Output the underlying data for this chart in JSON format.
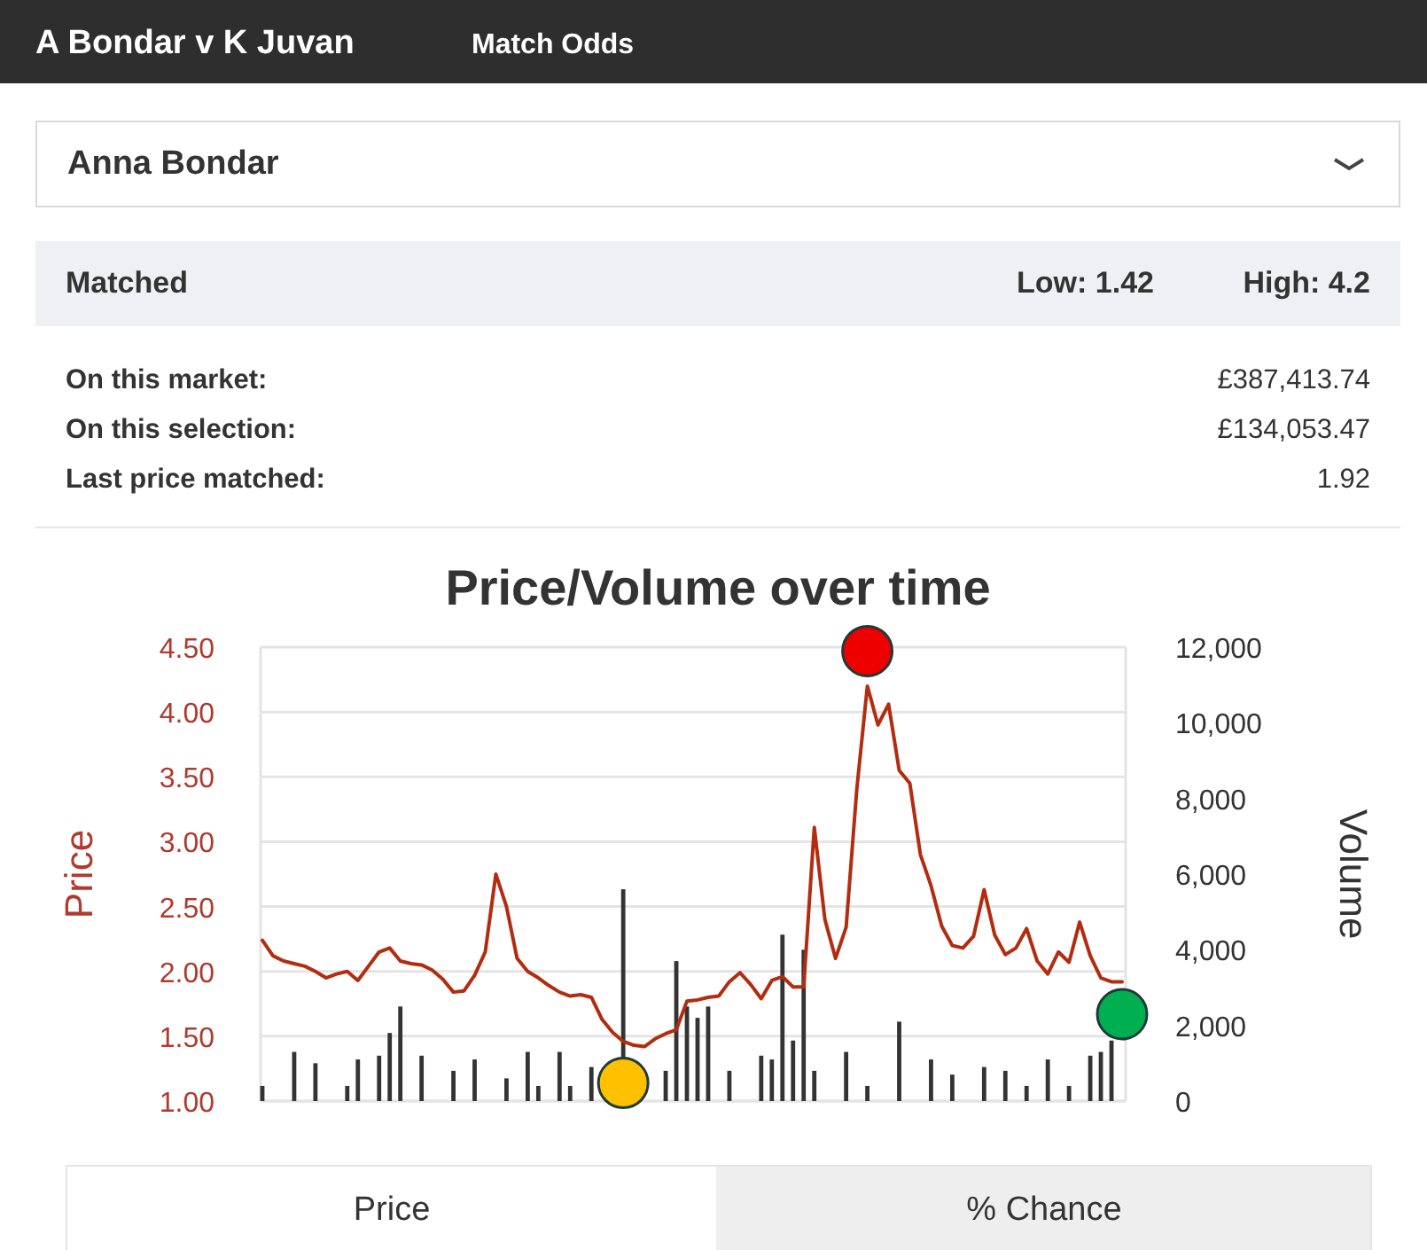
{
  "chart_data": {
    "type": "line",
    "title": "Price/Volume over time",
    "ylabel": "Price",
    "y2label": "Volume",
    "annotations": [
      "A Bondar v K Juvan",
      "Match Odds",
      "Anna Bondar",
      "Matched",
      "Low: 1.42",
      "High: 4.2",
      "On this market:",
      "£387,413.74",
      "On this selection:",
      "£134,053.47",
      "Last price matched:",
      "1.92",
      "Price",
      "% Chance"
    ],
    "categories": [
      null,
      null,
      null,
      null,
      null,
      null,
      null,
      null,
      null,
      null,
      null,
      null,
      null,
      null,
      null,
      null,
      null,
      null,
      null,
      null,
      null,
      null,
      null,
      null,
      null,
      null,
      null,
      null,
      null,
      null,
      null,
      null,
      null,
      null,
      null,
      null,
      null,
      null,
      null,
      null,
      null,
      null,
      null,
      null,
      null,
      null,
      null,
      null,
      null,
      null,
      null,
      null,
      null,
      null,
      null,
      null,
      null,
      null,
      null,
      null,
      null,
      null,
      null,
      null,
      null,
      null,
      null,
      null,
      null,
      null,
      null,
      null,
      null,
      null,
      null,
      null,
      null,
      null,
      null,
      null,
      null,
      null
    ],
    "ylim": [
      1,
      4.5
    ],
    "yticks": [
      {
        "value": 1,
        "label": "1.00"
      },
      {
        "value": 1.5,
        "label": "1.50"
      },
      {
        "value": 2,
        "label": "2.00"
      },
      {
        "value": 2.5,
        "label": "2.50"
      },
      {
        "value": 3,
        "label": "3.00"
      },
      {
        "value": 3.5,
        "label": "3.50"
      },
      {
        "value": 4,
        "label": "4.00"
      },
      {
        "value": 4.5,
        "label": "4.50"
      }
    ],
    "y2lim": [
      0,
      12000
    ],
    "y2ticks": [
      0,
      {
        "value": 2000,
        "label": "2,000"
      },
      {
        "value": 4000,
        "label": "4,000"
      },
      {
        "value": 6000,
        "label": "6,000"
      },
      {
        "value": 8000,
        "label": "8,000"
      },
      {
        "value": 10000,
        "label": "10,000"
      },
      {
        "value": 12000,
        "label": "12,000"
      }
    ],
    "grid": "y",
    "series": [
      {
        "type": "bar",
        "axis": "y2",
        "color": "#333333",
        "values": [
          400,
          null,
          null,
          1300,
          null,
          1000,
          null,
          null,
          400,
          1100,
          null,
          1200,
          1800,
          2500,
          null,
          1200,
          null,
          null,
          800,
          null,
          1100,
          null,
          null,
          600,
          null,
          1300,
          400,
          null,
          1300,
          400,
          null,
          900,
          null,
          null,
          5600,
          null,
          null,
          null,
          800,
          3700,
          2500,
          2200,
          2500,
          null,
          800,
          null,
          null,
          1200,
          1100,
          4400,
          1600,
          4000,
          800,
          null,
          null,
          1300,
          null,
          400,
          null,
          null,
          2100,
          null,
          null,
          1100,
          null,
          700,
          null,
          null,
          900,
          null,
          800,
          null,
          400,
          null,
          1100,
          null,
          400,
          null,
          1200,
          1300,
          1600,
          null
        ]
      },
      {
        "color": "#b22d10",
        "values": [
          2.24,
          2.12,
          2.08,
          2.06,
          2.04,
          2.0,
          1.95,
          1.98,
          2.0,
          1.93,
          2.04,
          2.15,
          2.18,
          2.08,
          2.06,
          2.05,
          2.01,
          1.94,
          1.84,
          1.85,
          1.97,
          2.15,
          2.75,
          2.5,
          2.1,
          2.0,
          1.95,
          1.89,
          1.84,
          1.81,
          1.82,
          1.8,
          1.63,
          1.53,
          1.46,
          1.43,
          1.42,
          1.48,
          1.52,
          1.55,
          1.77,
          1.78,
          1.8,
          1.81,
          1.92,
          1.99,
          1.9,
          1.79,
          1.93,
          1.96,
          1.88,
          1.88,
          3.11,
          2.4,
          2.1,
          2.34,
          3.4,
          4.2,
          3.9,
          4.06,
          3.55,
          3.45,
          2.9,
          2.66,
          2.35,
          2.2,
          2.18,
          2.27,
          2.63,
          2.28,
          2.13,
          2.18,
          2.33,
          2.08,
          1.98,
          2.15,
          2.07,
          2.38,
          2.12,
          1.95,
          1.92,
          1.92
        ]
      },
      {
        "type": "scatter",
        "color": "#ee0000",
        "marker": "circle",
        "values": [
          null,
          null,
          null,
          null,
          null,
          null,
          null,
          null,
          null,
          null,
          null,
          null,
          null,
          null,
          null,
          null,
          null,
          null,
          null,
          null,
          null,
          null,
          null,
          null,
          null,
          null,
          null,
          null,
          null,
          null,
          null,
          null,
          null,
          null,
          null,
          null,
          null,
          null,
          null,
          null,
          null,
          null,
          null,
          null,
          null,
          null,
          null,
          null,
          null,
          null,
          null,
          null,
          null,
          null,
          null,
          null,
          null,
          4.47,
          null,
          null,
          null,
          null,
          null,
          null,
          null,
          null,
          null,
          null,
          null,
          null,
          null,
          null,
          null,
          null,
          null,
          null,
          null,
          null,
          null,
          null,
          null,
          null
        ]
      },
      {
        "type": "scatter",
        "color": "#ffc000",
        "marker": "circle",
        "values": [
          null,
          null,
          null,
          null,
          null,
          null,
          null,
          null,
          null,
          null,
          null,
          null,
          null,
          null,
          null,
          null,
          null,
          null,
          null,
          null,
          null,
          null,
          null,
          null,
          null,
          null,
          null,
          null,
          null,
          null,
          null,
          null,
          null,
          null,
          1.14,
          null,
          null,
          null,
          null,
          null,
          null,
          null,
          null,
          null,
          null,
          null,
          null,
          null,
          null,
          null,
          null,
          null,
          null,
          null,
          null,
          null,
          null,
          null,
          null,
          null,
          null,
          null,
          null,
          null,
          null,
          null,
          null,
          null,
          null,
          null,
          null,
          null,
          null,
          null,
          null,
          null,
          null,
          null,
          null,
          null,
          null,
          null
        ]
      },
      {
        "type": "scatter",
        "color": "#00b050",
        "marker": "circle",
        "values": [
          null,
          null,
          null,
          null,
          null,
          null,
          null,
          null,
          null,
          null,
          null,
          null,
          null,
          null,
          null,
          null,
          null,
          null,
          null,
          null,
          null,
          null,
          null,
          null,
          null,
          null,
          null,
          null,
          null,
          null,
          null,
          null,
          null,
          null,
          null,
          null,
          null,
          null,
          null,
          null,
          null,
          null,
          null,
          null,
          null,
          null,
          null,
          null,
          null,
          null,
          null,
          null,
          null,
          null,
          null,
          null,
          null,
          null,
          null,
          null,
          null,
          null,
          null,
          null,
          null,
          null,
          null,
          null,
          null,
          null,
          null,
          null,
          null,
          null,
          null,
          null,
          null,
          null,
          null,
          null,
          null,
          1.67
        ]
      }
    ]
  }
}
